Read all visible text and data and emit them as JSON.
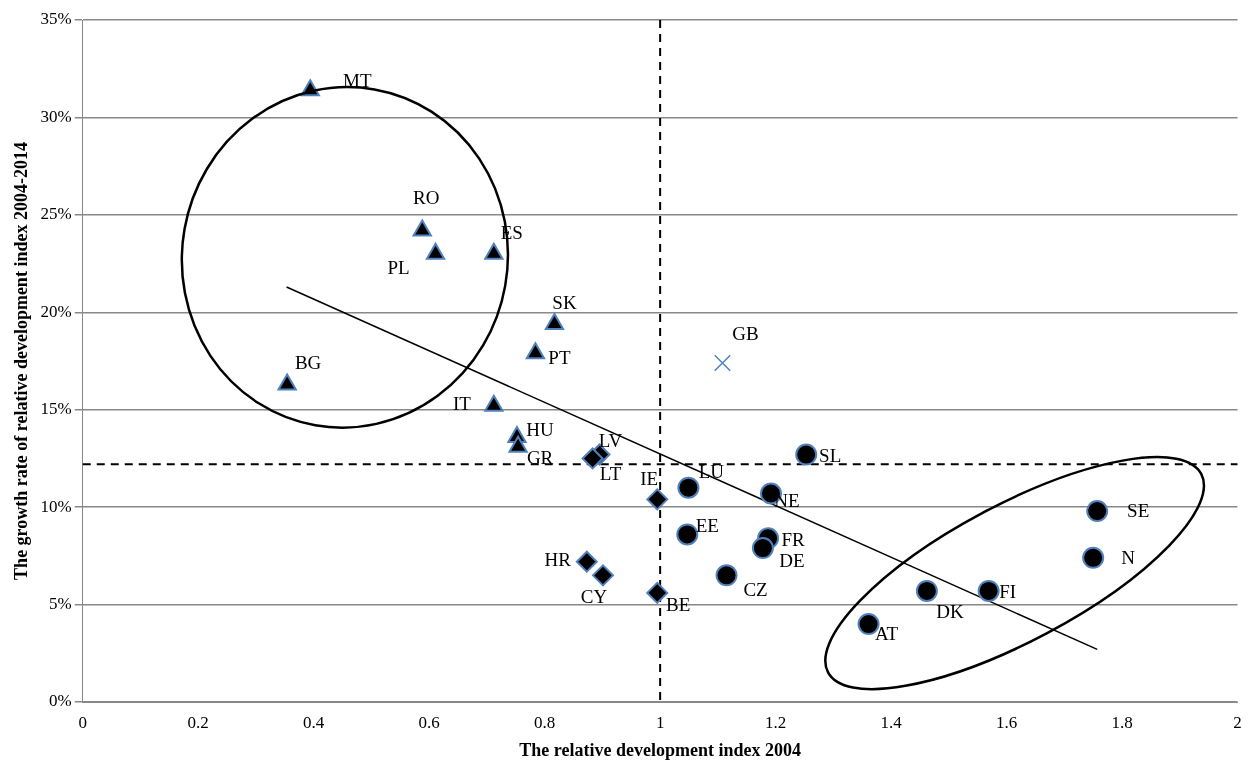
{
  "chart_data": {
    "type": "scatter",
    "xlabel": "The relative development index 2004",
    "ylabel": "The growth rate of relative development index 2004-2014",
    "xlim": [
      0,
      2
    ],
    "xticks": [
      0,
      0.2,
      0.4,
      0.6,
      0.8,
      1,
      1.2,
      1.4,
      1.6,
      1.8,
      2
    ],
    "ylim": [
      0,
      35
    ],
    "yticks": [
      {
        "value": 0,
        "label": "0%"
      },
      {
        "value": 5,
        "label": "5%"
      },
      {
        "value": 10,
        "label": "10%"
      },
      {
        "value": 15,
        "label": "15%"
      },
      {
        "value": 20,
        "label": "20%"
      },
      {
        "value": 25,
        "label": "25%"
      },
      {
        "value": 30,
        "label": "30%"
      },
      {
        "value": 35,
        "label": "35%"
      }
    ],
    "grid": "y",
    "legend": false,
    "series": [
      {
        "type": "scatter",
        "marker": "triangle",
        "color": "#000000",
        "x": [
          0.394,
          0.588,
          0.611,
          0.712,
          0.817,
          0.784,
          0.354,
          0.712,
          0.752,
          0.754
        ],
        "values": [
          31.4,
          24.2,
          23.0,
          23.0,
          19.4,
          17.9,
          16.3,
          15.2,
          13.6,
          13.1
        ]
      },
      {
        "type": "scatter",
        "marker": "diamond",
        "color": "#000000",
        "x": [
          0.895,
          0.883,
          0.995,
          0.873,
          0.901,
          0.995
        ],
        "values": [
          12.7,
          12.5,
          10.4,
          7.2,
          6.5,
          5.6
        ]
      },
      {
        "type": "scatter",
        "marker": "circle",
        "color": "#000000",
        "x": [
          1.049,
          1.253,
          1.192,
          1.757,
          1.75,
          1.047,
          1.187,
          1.178,
          1.115,
          1.462,
          1.569,
          1.361
        ],
        "values": [
          11.0,
          12.7,
          10.7,
          9.8,
          7.4,
          8.6,
          8.4,
          7.9,
          6.5,
          5.7,
          5.7,
          4.0
        ]
      },
      {
        "type": "scatter",
        "marker": "cross",
        "color": "#4f81bd",
        "x": [
          1.108
        ],
        "values": [
          17.4
        ]
      },
      {
        "type": "line",
        "marker": "none",
        "color": "#000000",
        "x": [
          0.353,
          1.757
        ],
        "values": [
          21.3,
          2.7
        ]
      }
    ],
    "ref_lines": [
      {
        "axis": "x",
        "value": 1,
        "color": "#000000",
        "line_style": "dashed"
      },
      {
        "axis": "y",
        "value": 12.2,
        "color": "#000000",
        "line_style": "dashed"
      }
    ],
    "annotations": [
      {
        "text": "MT",
        "x": 0.394,
        "y": 31.4
      },
      {
        "text": "RO",
        "x": 0.588,
        "y": 24.2
      },
      {
        "text": "PL",
        "x": 0.611,
        "y": 23.0
      },
      {
        "text": "ES",
        "x": 0.712,
        "y": 23.0
      },
      {
        "text": "SK",
        "x": 0.817,
        "y": 19.4
      },
      {
        "text": "PT",
        "x": 0.784,
        "y": 17.9
      },
      {
        "text": "BG",
        "x": 0.354,
        "y": 16.3
      },
      {
        "text": "IT",
        "x": 0.712,
        "y": 15.2
      },
      {
        "text": "HU",
        "x": 0.752,
        "y": 13.6
      },
      {
        "text": "GR",
        "x": 0.754,
        "y": 13.1
      },
      {
        "text": "LV",
        "x": 0.895,
        "y": 12.7
      },
      {
        "text": "LT",
        "x": 0.883,
        "y": 12.5
      },
      {
        "text": "IE",
        "x": 0.995,
        "y": 10.4
      },
      {
        "text": "LU",
        "x": 1.049,
        "y": 11.0
      },
      {
        "text": "NE",
        "x": 1.192,
        "y": 10.7
      },
      {
        "text": "SL",
        "x": 1.253,
        "y": 12.7
      },
      {
        "text": "EE",
        "x": 1.047,
        "y": 8.6
      },
      {
        "text": "FR",
        "x": 1.187,
        "y": 8.4
      },
      {
        "text": "DE",
        "x": 1.178,
        "y": 7.9
      },
      {
        "text": "CZ",
        "x": 1.115,
        "y": 6.5
      },
      {
        "text": "HR",
        "x": 0.873,
        "y": 7.2
      },
      {
        "text": "CY",
        "x": 0.901,
        "y": 6.5
      },
      {
        "text": "BE",
        "x": 0.995,
        "y": 5.6
      },
      {
        "text": "AT",
        "x": 1.361,
        "y": 4.0
      },
      {
        "text": "DK",
        "x": 1.462,
        "y": 5.7
      },
      {
        "text": "FI",
        "x": 1.569,
        "y": 5.7
      },
      {
        "text": "N",
        "x": 1.75,
        "y": 7.4
      },
      {
        "text": "SE",
        "x": 1.757,
        "y": 9.8
      },
      {
        "text": "GB",
        "x": 1.108,
        "y": 17.4
      }
    ]
  }
}
